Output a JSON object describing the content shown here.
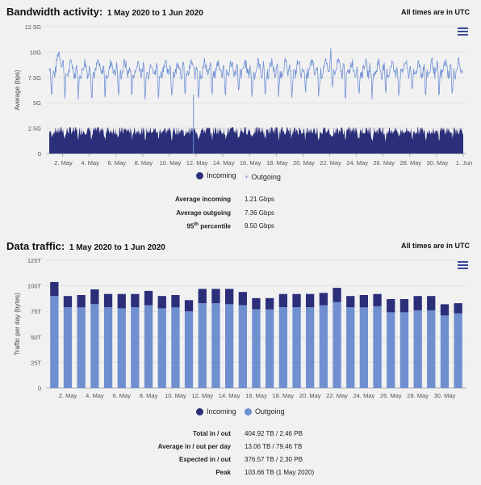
{
  "bandwidth": {
    "title": "Bandwidth activity:",
    "range": "1 May 2020 to 1 Jun 2020",
    "utc_note": "All times are in UTC",
    "ylabel": "Average (bps)",
    "legend": [
      "Incoming",
      "Outgoing"
    ],
    "stats": [
      {
        "label": "Average incoming",
        "value": "1.21 Gbps"
      },
      {
        "label": "Average outgoing",
        "value": "7.36 Gbps"
      },
      {
        "label": "95",
        "sup": "th",
        "label_rest": " percentile",
        "value": "9.50 Gbps"
      }
    ]
  },
  "traffic": {
    "title": "Data traffic:",
    "range": "1 May 2020 to 1 Jun 2020",
    "utc_note": "All times are in UTC",
    "ylabel": "Traffic per day (bytes)",
    "legend": [
      "Incoming",
      "Outgoing"
    ],
    "stats": [
      {
        "label": "Total in / out",
        "value": "404.92 TB / 2.46 PB"
      },
      {
        "label": "Average in / out per day",
        "value": "13.06 TB / 79.46 TB"
      },
      {
        "label": "Expected in / out",
        "value": "376.57 TB / 2.30 PB"
      },
      {
        "label": "Peak",
        "value": "103.66 TB (1 May 2020)"
      }
    ]
  },
  "colors": {
    "incoming": "#2b2f7a",
    "outgoing": "#6f8fd0",
    "outgoing_line": "#6e8fd4"
  },
  "chart_data": [
    {
      "type": "area",
      "title": "Bandwidth activity:",
      "ylabel": "Average (bps)",
      "ylim": [
        0,
        12.5
      ],
      "yticks": [
        "0",
        "2.5G",
        "5G",
        "7.5G",
        "10G",
        "12.5G"
      ],
      "xticks": [
        "2. May",
        "4. May",
        "6. May",
        "8. May",
        "10. May",
        "12. May",
        "14. May",
        "16. May",
        "18. May",
        "20. May",
        "22. May",
        "24. May",
        "26. May",
        "28. May",
        "30. May",
        "1. Jun"
      ],
      "series": [
        {
          "name": "Incoming",
          "approx_range_gbps": [
            0.5,
            2.6
          ]
        },
        {
          "name": "Outgoing",
          "approx_range_gbps": [
            4.5,
            10.9
          ]
        }
      ],
      "legend": "bottom-center"
    },
    {
      "type": "bar",
      "title": "Data traffic:",
      "ylabel": "Traffic per day (bytes)",
      "ylim": [
        0,
        125
      ],
      "yticks": [
        "0",
        "25T",
        "50T",
        "75T",
        "100T",
        "125T"
      ],
      "xticks": [
        "2. May",
        "4. May",
        "6. May",
        "8. May",
        "10. May",
        "12. May",
        "14. May",
        "16. May",
        "18. May",
        "20. May",
        "22. May",
        "24. May",
        "26. May",
        "28. May",
        "30. May"
      ],
      "categories": [
        "1 May",
        "2 May",
        "3 May",
        "4 May",
        "5 May",
        "6 May",
        "7 May",
        "8 May",
        "9 May",
        "10 May",
        "11 May",
        "12 May",
        "13 May",
        "14 May",
        "15 May",
        "16 May",
        "17 May",
        "18 May",
        "19 May",
        "20 May",
        "21 May",
        "22 May",
        "23 May",
        "24 May",
        "25 May",
        "26 May",
        "27 May",
        "28 May",
        "29 May",
        "30 May",
        "31 May"
      ],
      "series": [
        {
          "name": "Outgoing",
          "values": [
            90,
            79,
            79,
            82,
            79,
            78,
            79,
            81,
            78,
            79,
            75,
            83,
            83,
            82,
            81,
            77,
            77,
            79,
            79,
            79,
            81,
            84,
            79,
            79,
            80,
            74,
            74,
            76,
            76,
            71,
            73
          ]
        },
        {
          "name": "Incoming",
          "values": [
            13.7,
            11,
            12,
            14.5,
            13,
            14,
            13,
            14,
            12,
            12,
            11,
            14,
            14,
            15,
            13,
            11,
            11,
            13,
            13,
            13,
            12,
            14,
            11,
            12,
            12,
            13,
            13,
            14,
            14,
            11,
            10
          ]
        }
      ],
      "legend": "bottom-center"
    }
  ]
}
